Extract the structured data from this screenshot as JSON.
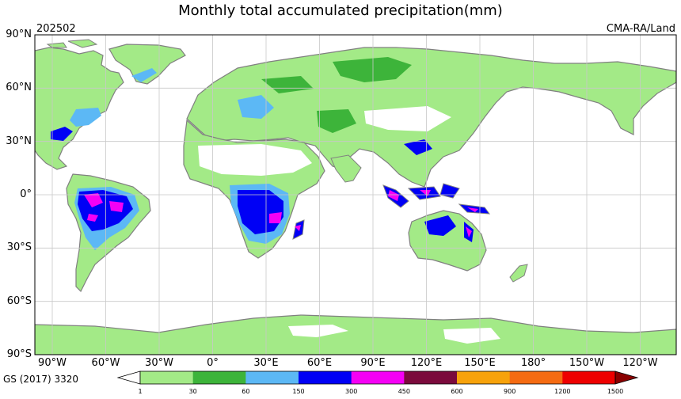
{
  "title": "Monthly total accumulated precipitation(mm)",
  "period_label": "202502",
  "dataset_label": "CMA-RA/Land",
  "credit": "GS (2017) 3320",
  "lat_labels": [
    "90°N",
    "60°N",
    "30°N",
    "0°",
    "30°S",
    "60°S",
    "90°S"
  ],
  "lon_labels": [
    "90°W",
    "60°W",
    "30°W",
    "0°",
    "30°E",
    "60°E",
    "90°E",
    "120°E",
    "150°E",
    "180°",
    "150°W",
    "120°W"
  ],
  "colorbar": {
    "ticks": [
      "1",
      "30",
      "60",
      "150",
      "300",
      "450",
      "600",
      "900",
      "1200",
      "1500"
    ],
    "colors": [
      "#a3ea87",
      "#3db43a",
      "#5cb8f5",
      "#0000f5",
      "#f500f5",
      "#7b0a3c",
      "#f7a20b",
      "#f56b12",
      "#ee0000"
    ],
    "under_color": "#ffffff",
    "over_color": "#8a0000"
  },
  "colors": {
    "land_outline": "#808080",
    "grid": "#c8c8c8",
    "frame": "#000000"
  }
}
